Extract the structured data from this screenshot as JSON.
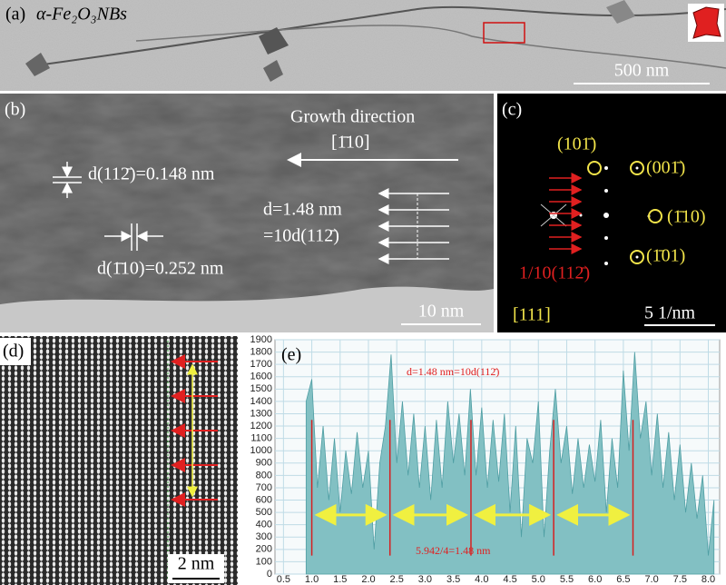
{
  "figure": {
    "a": {
      "label": "(a)",
      "material": "α-Fe₂O₃NBs",
      "scale": "500 nm"
    },
    "b": {
      "label": "(b)",
      "growth": "Growth direction",
      "direction": "[1̄10]",
      "d1": "d(112̄)=0.148 nm",
      "d2": "d=1.48 nm",
      "d3": "=10d(112̄)",
      "d4": "d(1̄10)=0.252 nm",
      "scale": "10 nm"
    },
    "c": {
      "label": "(c)",
      "spots": [
        "(101̄)",
        "(001̄)",
        "(1̄10)",
        "(1̄01)"
      ],
      "note": "1/10(112̄)",
      "zone": "[111]",
      "scale": "5 1/nm"
    },
    "d": {
      "label": "(d)",
      "scale": "2 nm"
    },
    "e": {
      "label": "(e)"
    }
  },
  "chart_data": {
    "type": "area",
    "color": "#82c0c3",
    "annotation_top": "d=1.48 nm=10d(112̄)",
    "annotation_bottom": "5.942/4=1.48 nm",
    "x": [
      0.9,
      1.0,
      1.1,
      1.2,
      1.3,
      1.4,
      1.5,
      1.6,
      1.7,
      1.8,
      1.9,
      2.0,
      2.1,
      2.2,
      2.3,
      2.4,
      2.5,
      2.6,
      2.7,
      2.8,
      2.9,
      3.0,
      3.1,
      3.2,
      3.3,
      3.4,
      3.5,
      3.6,
      3.7,
      3.8,
      3.9,
      4.0,
      4.1,
      4.2,
      4.3,
      4.4,
      4.5,
      4.6,
      4.7,
      4.8,
      4.9,
      5.0,
      5.1,
      5.2,
      5.3,
      5.4,
      5.5,
      5.6,
      5.7,
      5.8,
      5.9,
      6.0,
      6.1,
      6.2,
      6.3,
      6.4,
      6.5,
      6.6,
      6.7,
      6.8,
      6.9,
      7.0,
      7.1,
      7.2,
      7.3,
      7.4,
      7.5,
      7.6,
      7.7,
      7.8,
      7.9,
      8.0,
      8.1
    ],
    "values": [
      1400,
      1580,
      700,
      1200,
      600,
      1100,
      500,
      1000,
      650,
      1150,
      700,
      1000,
      200,
      900,
      1200,
      1780,
      900,
      1400,
      800,
      1300,
      700,
      1200,
      600,
      1250,
      700,
      1400,
      900,
      1300,
      800,
      1500,
      800,
      1350,
      700,
      1250,
      750,
      1300,
      500,
      1200,
      300,
      1100,
      900,
      1400,
      300,
      1000,
      1500,
      900,
      1200,
      650,
      1100,
      700,
      1050,
      750,
      1250,
      500,
      1100,
      700,
      1650,
      1000,
      1800,
      1100,
      1400,
      800,
      1300,
      700,
      1150,
      600,
      1050,
      500,
      900,
      450,
      800,
      150,
      600
    ],
    "markers": [
      1.0,
      2.38,
      3.81,
      5.27,
      6.67
    ],
    "marker_color": "#d62020",
    "xlim": [
      0.35,
      8.2
    ],
    "ylim": [
      0,
      1900
    ],
    "xticks": [
      0.5,
      {
        "value": 1,
        "label": "1.0"
      },
      1.5,
      {
        "value": 2,
        "label": "2.0"
      },
      2.5,
      {
        "value": 3,
        "label": "3.0"
      },
      3.5,
      {
        "value": 4,
        "label": "4.0"
      },
      4.5,
      {
        "value": 5,
        "label": "5.0"
      },
      5.5,
      {
        "value": 6,
        "label": "6.0"
      },
      6.5,
      {
        "value": 7,
        "label": "7.0"
      },
      7.5,
      {
        "value": 8,
        "label": "8.0"
      }
    ],
    "yticks": [
      0,
      100,
      200,
      300,
      400,
      500,
      600,
      700,
      800,
      900,
      1000,
      1100,
      1200,
      1300,
      1400,
      1500,
      1600,
      1700,
      1800,
      1900
    ],
    "grid": true
  }
}
